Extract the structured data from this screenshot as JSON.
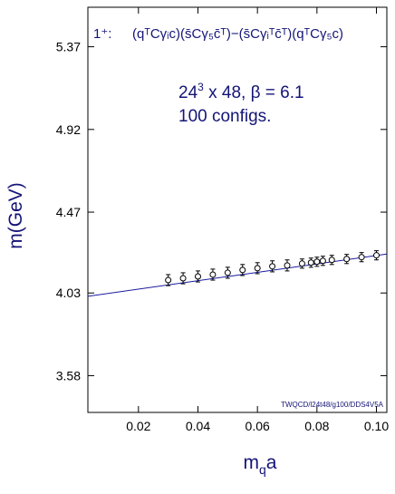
{
  "chart_data": {
    "type": "scatter",
    "title": "",
    "xlabel": "m",
    "xlabel_sub": "q",
    "xlabel_suffix": "a",
    "ylabel": "m(GeV)",
    "xlim": [
      0.003,
      0.1035
    ],
    "ylim": [
      3.38,
      5.585
    ],
    "x_ticks": [
      0.02,
      0.04,
      0.06,
      0.08,
      0.1
    ],
    "x_tick_labels": [
      "0.02",
      "0.04",
      "0.06",
      "0.08",
      "0.10"
    ],
    "y_ticks": [
      3.58,
      4.03,
      4.47,
      4.92,
      5.37
    ],
    "y_tick_labels": [
      "3.58",
      "4.03",
      "4.47",
      "4.92",
      "5.37"
    ],
    "grid": false,
    "series": [
      {
        "x": [
          0.03,
          0.035,
          0.04,
          0.045,
          0.05,
          0.055,
          0.06,
          0.065,
          0.07,
          0.075,
          0.078,
          0.08,
          0.082,
          0.085,
          0.09,
          0.095,
          0.1
        ],
        "y": [
          4.1,
          4.11,
          4.12,
          4.13,
          4.14,
          4.155,
          4.165,
          4.175,
          4.18,
          4.19,
          4.195,
          4.2,
          4.205,
          4.21,
          4.215,
          4.225,
          4.235
        ],
        "err": [
          0.03,
          0.03,
          0.03,
          0.03,
          0.03,
          0.03,
          0.03,
          0.03,
          0.03,
          0.025,
          0.025,
          0.025,
          0.025,
          0.025,
          0.025,
          0.025,
          0.025
        ],
        "marker": "circle-open"
      }
    ],
    "fit_line": {
      "x": [
        0.003,
        0.1035
      ],
      "y": [
        4.012,
        4.242
      ]
    }
  },
  "annotations": {
    "label_lattice_prefix": "24",
    "label_lattice_exp": "3",
    "label_lattice_suffix": " x 48, β = 6.1",
    "label_configs": "100 configs.",
    "credit": "TWQCD/l24t48/g100/DDS4V5A",
    "quantum": "1⁺:",
    "operator": "(qᵀCγᵢc)(s̄Cγ₅c̄ᵀ)−(s̄Cγᵢᵀc̄ᵀ)(qᵀCγ₅c)"
  },
  "colors": {
    "accent": "#141478",
    "fit": "#1a1aa0",
    "frame": "#000000",
    "points": "#000000"
  }
}
